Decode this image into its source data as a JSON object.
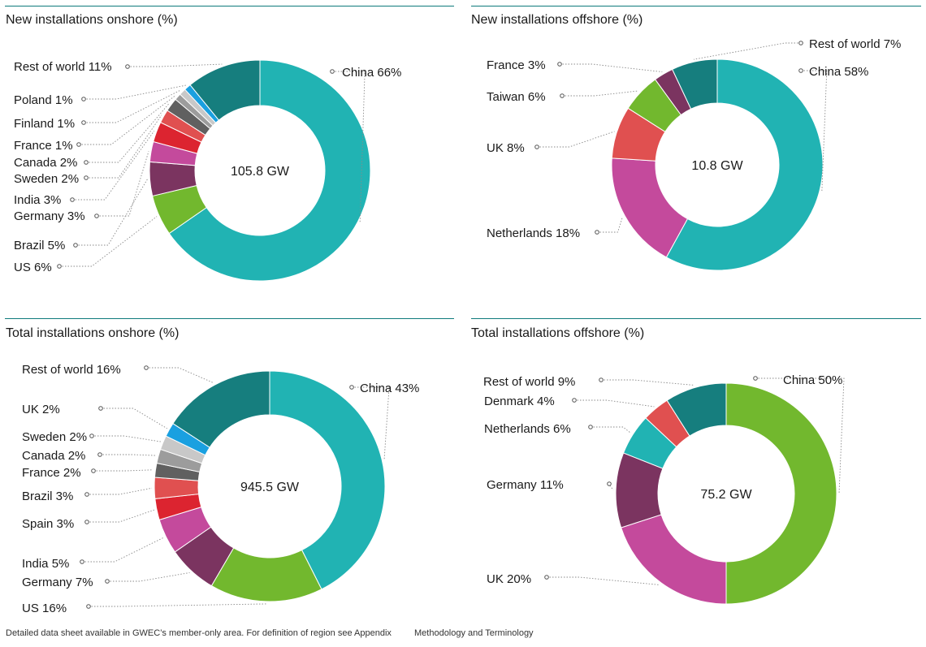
{
  "footer": {
    "left": "Detailed data sheet available in GWEC’s member-only area. For definition of region see Appendix",
    "right": "Methodology and Terminology"
  },
  "colors": {
    "accent_rule": "#0e7a7c"
  },
  "chart_data": [
    {
      "type": "pie",
      "title": "New installations onshore (%)",
      "center_label": "105.8 GW",
      "slices": [
        {
          "label": "China 66%",
          "value": 66,
          "color": "#21b3b3"
        },
        {
          "label": "US 6%",
          "value": 6,
          "color": "#72b82e"
        },
        {
          "label": "Brazil 5%",
          "value": 5,
          "color": "#7b3460"
        },
        {
          "label": "Germany 3%",
          "value": 3,
          "color": "#c44a9c"
        },
        {
          "label": "India 3%",
          "value": 3,
          "color": "#dc2430"
        },
        {
          "label": "Sweden 2%",
          "value": 2,
          "color": "#e05050"
        },
        {
          "label": "Canada 2%",
          "value": 2,
          "color": "#606060"
        },
        {
          "label": "France 1%",
          "value": 1,
          "color": "#9c9c9c"
        },
        {
          "label": "Finland 1%",
          "value": 1,
          "color": "#c8c8c8"
        },
        {
          "label": "Poland 1%",
          "value": 1,
          "color": "#1aa0e0"
        },
        {
          "label": "Rest of world 11%",
          "value": 11,
          "color": "#167e7e"
        }
      ]
    },
    {
      "type": "pie",
      "title": "New installations offshore (%)",
      "center_label": "10.8 GW",
      "slices": [
        {
          "label": "China 58%",
          "value": 58,
          "color": "#21b3b3"
        },
        {
          "label": "Netherlands 18%",
          "value": 18,
          "color": "#c44a9c"
        },
        {
          "label": "UK 8%",
          "value": 8,
          "color": "#e05050"
        },
        {
          "label": "Taiwan 6%",
          "value": 6,
          "color": "#72b82e"
        },
        {
          "label": "France 3%",
          "value": 3,
          "color": "#7b3460"
        },
        {
          "label": "Rest of world 7%",
          "value": 7,
          "color": "#167e7e"
        }
      ]
    },
    {
      "type": "pie",
      "title": "Total installations onshore (%)",
      "center_label": "945.5 GW",
      "slices": [
        {
          "label": "China 43%",
          "value": 43,
          "color": "#21b3b3"
        },
        {
          "label": "US 16%",
          "value": 16,
          "color": "#72b82e"
        },
        {
          "label": "Germany 7%",
          "value": 7,
          "color": "#7b3460"
        },
        {
          "label": "India 5%",
          "value": 5,
          "color": "#c44a9c"
        },
        {
          "label": "Spain 3%",
          "value": 3,
          "color": "#dc2430"
        },
        {
          "label": "Brazil 3%",
          "value": 3,
          "color": "#e05050"
        },
        {
          "label": "France 2%",
          "value": 2,
          "color": "#606060"
        },
        {
          "label": "Canada 2%",
          "value": 2,
          "color": "#9c9c9c"
        },
        {
          "label": "Sweden 2%",
          "value": 2,
          "color": "#c8c8c8"
        },
        {
          "label": "UK 2%",
          "value": 2,
          "color": "#1aa0e0"
        },
        {
          "label": "Rest of world 16%",
          "value": 16,
          "color": "#167e7e"
        }
      ]
    },
    {
      "type": "pie",
      "title": "Total installations offshore (%)",
      "center_label": "75.2 GW",
      "slices": [
        {
          "label": "China 50%",
          "value": 50,
          "color": "#72b82e"
        },
        {
          "label": "UK 20%",
          "value": 20,
          "color": "#c44a9c"
        },
        {
          "label": "Germany 11%",
          "value": 11,
          "color": "#7b3460"
        },
        {
          "label": "Netherlands 6%",
          "value": 6,
          "color": "#21b3b3"
        },
        {
          "label": "Denmark 4%",
          "value": 4,
          "color": "#e05050"
        },
        {
          "label": "Rest of world 9%",
          "value": 9,
          "color": "#167e7e"
        }
      ]
    }
  ]
}
